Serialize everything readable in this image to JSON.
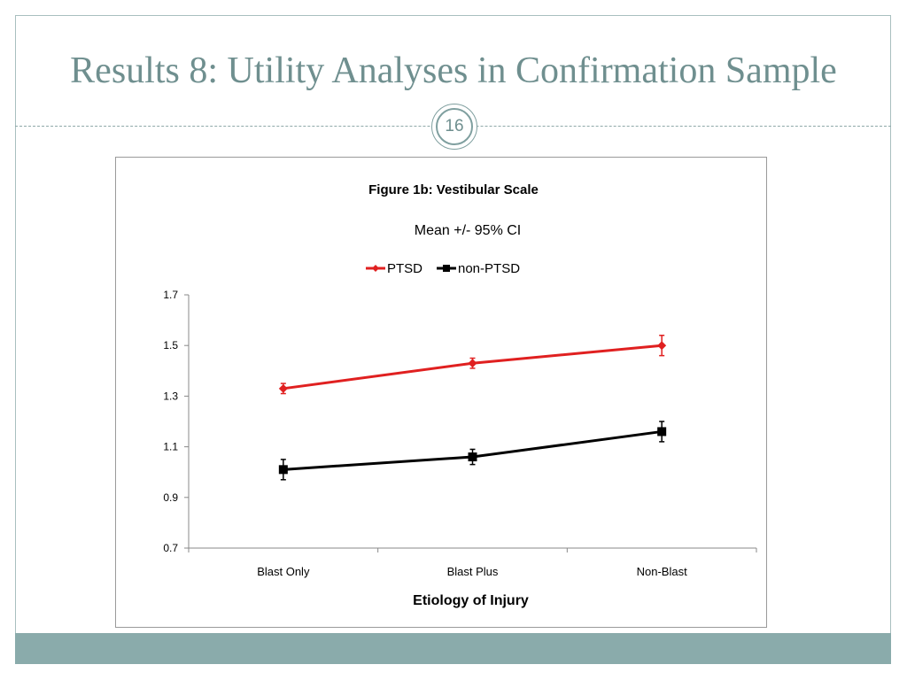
{
  "slide": {
    "title": "Results 8: Utility Analyses in Confirmation Sample",
    "page_number": "16"
  },
  "colors": {
    "accent": "#6f8f8f",
    "footer": "#8aabab",
    "ptsd": "#e02020",
    "non_ptsd": "#000000"
  },
  "chart_data": {
    "type": "line",
    "title": "Figure 1b:  Vestibular Scale",
    "subtitle": "Mean +/- 95% CI",
    "xlabel": "Etiology of Injury",
    "ylabel": "",
    "categories": [
      "Blast Only",
      "Blast Plus",
      "Non-Blast"
    ],
    "ylim": [
      0.7,
      1.7
    ],
    "yticks": [
      0.7,
      0.9,
      1.1,
      1.3,
      1.5,
      1.7
    ],
    "ytick_labels": [
      "0.7",
      "0.9",
      "1.1",
      "1.3",
      "1.5",
      "1.7"
    ],
    "grid": false,
    "legend_position": "top-center",
    "series": [
      {
        "name": "PTSD",
        "color": "#e02020",
        "marker": "diamond",
        "values": [
          1.33,
          1.43,
          1.5
        ],
        "ci_lower": [
          1.31,
          1.41,
          1.46
        ],
        "ci_upper": [
          1.35,
          1.45,
          1.54
        ]
      },
      {
        "name": "non-PTSD",
        "color": "#000000",
        "marker": "square",
        "values": [
          1.01,
          1.06,
          1.16
        ],
        "ci_lower": [
          0.97,
          1.03,
          1.12
        ],
        "ci_upper": [
          1.05,
          1.09,
          1.2
        ]
      }
    ]
  }
}
